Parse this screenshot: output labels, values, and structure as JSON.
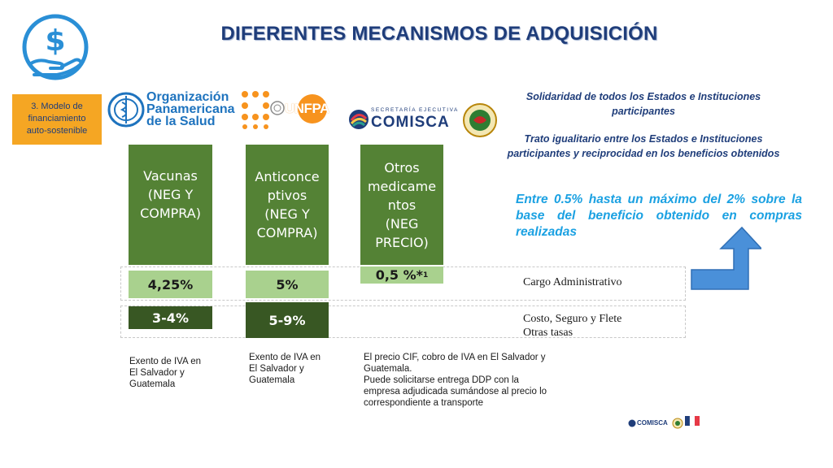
{
  "header": {
    "title": "DIFERENTES MECANISMOS DE ADQUISICIÓN",
    "model_box": [
      "3. Modelo de",
      "financiamiento",
      "auto-sostenible"
    ]
  },
  "logos": {
    "ops_lines": [
      "Organización",
      "Panamericana",
      "de la Salud"
    ],
    "unfpa_text": "UNFPA",
    "comisca_small": "SECRETARÍA EJECUTIVA",
    "comisca_big": "COMISCA",
    "footer_comisca": "COMISCA"
  },
  "columns": [
    {
      "lines": [
        "Vacunas",
        "(NEG Y",
        "COMPRA)"
      ]
    },
    {
      "lines": [
        "Anticonce",
        "ptivos",
        "(NEG Y",
        "COMPRA)"
      ]
    },
    {
      "lines": [
        "Otros",
        "medicame",
        "ntos",
        "(NEG",
        "PRECIO)"
      ]
    }
  ],
  "admin_row": {
    "values": [
      "4,25%",
      "5%",
      "0,5 %*"
    ],
    "footnote_mark": "1",
    "label": "Cargo Administrativo"
  },
  "cif_row": {
    "values": [
      "3-4%",
      "5-9%"
    ],
    "label_lines": [
      "Costo, Seguro y Flete",
      "Otras tasas"
    ]
  },
  "right_text": {
    "solidarity": [
      "Solidaridad de todos los Estados e Instituciones",
      "participantes"
    ],
    "equality": [
      "Trato igualitario entre los Estados e Instituciones",
      "participantes y reciprocidad en los beneficios obtenidos"
    ],
    "range": "Entre 0.5% hasta un máximo del 2% sobre la base del beneficio obtenido en compras realizadas"
  },
  "notes": {
    "n1": [
      "Exento de IVA en",
      "El Salvador y",
      "Guatemala"
    ],
    "n2": [
      "Exento de IVA en",
      "El Salvador y",
      "Guatemala"
    ],
    "n3": [
      "El precio CIF, cobro de IVA en El Salvador y",
      "Guatemala.",
      "Puede solicitarse entrega DDP con la",
      "empresa adjudicada sumándose al precio lo",
      "correspondiente a transporte"
    ]
  },
  "colors": {
    "title": "#1f3d7a",
    "green": "#548235",
    "light_green": "#a9d18e",
    "dark_green": "#385723",
    "orange": "#f5a623",
    "cyan": "#1ba1e2",
    "arrow": "#4a90d9"
  }
}
